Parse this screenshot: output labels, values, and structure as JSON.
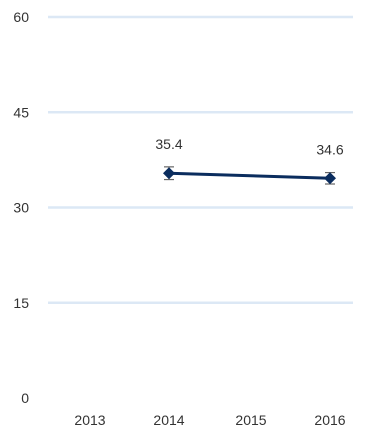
{
  "chart_data": {
    "type": "line",
    "categories": [
      "2013",
      "2014",
      "2015",
      "2016"
    ],
    "y_ticks": [
      "0",
      "15",
      "30",
      "45",
      "60"
    ],
    "ylim": [
      0,
      60
    ],
    "grid": true,
    "series": [
      {
        "values": [
          null,
          35.4,
          null,
          34.6
        ],
        "labels": [
          "",
          "35.4",
          "",
          "34.6"
        ],
        "error": [
          null,
          1.0,
          null,
          0.9
        ],
        "color": "#0b2d5e",
        "marker": "diamond"
      }
    ],
    "gridline_color": "#dce8f5"
  }
}
